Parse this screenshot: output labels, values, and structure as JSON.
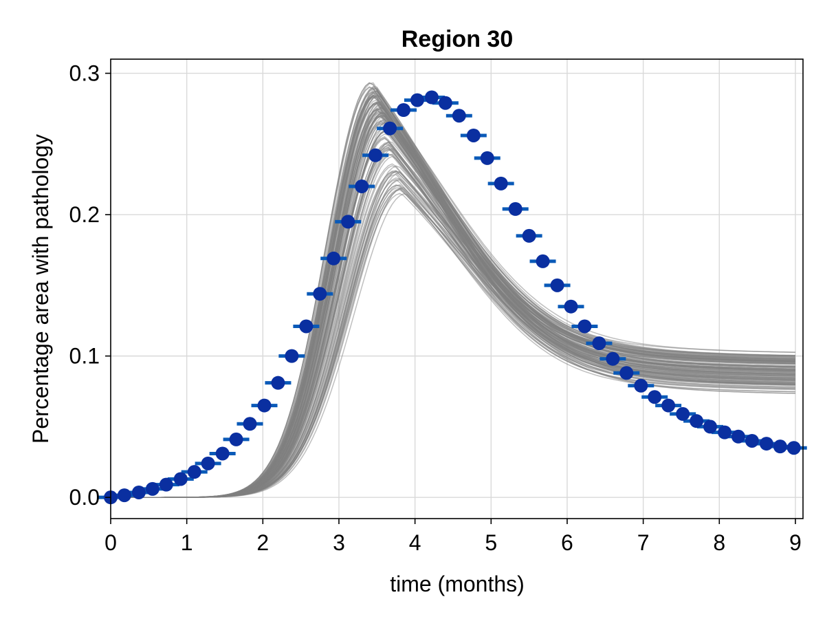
{
  "chart_data": {
    "type": "line",
    "title": "Region 30",
    "xlabel": "time (months)",
    "ylabel": "Percentage area with pathology",
    "xlim": [
      0,
      9.1
    ],
    "ylim": [
      -0.015,
      0.31
    ],
    "x_ticks": [
      0,
      1,
      2,
      3,
      4,
      5,
      6,
      7,
      8,
      9
    ],
    "x_tick_labels": [
      "0",
      "1",
      "2",
      "3",
      "4",
      "5",
      "6",
      "7",
      "8",
      "9"
    ],
    "y_ticks": [
      0.0,
      0.1,
      0.2,
      0.3
    ],
    "y_tick_labels": [
      "0.0",
      "0.1",
      "0.2",
      "0.3"
    ],
    "grid": true,
    "colors": {
      "simulation": "#808080",
      "data_marker": "#0a2fa0",
      "error_bar": "#0a5ab8"
    },
    "simulations": {
      "count": 120,
      "style": "thin grey lines, semi-transparent",
      "peak_value_range": [
        0.215,
        0.294
      ],
      "peak_time_range": [
        3.45,
        3.85
      ],
      "final_value_range": [
        0.071,
        0.103
      ]
    },
    "observed": {
      "marker": "filled circle",
      "x": [
        0.0,
        0.18,
        0.37,
        0.55,
        0.73,
        0.92,
        1.1,
        1.28,
        1.47,
        1.65,
        1.83,
        2.02,
        2.2,
        2.38,
        2.57,
        2.75,
        2.93,
        3.12,
        3.3,
        3.48,
        3.67,
        3.85,
        4.03,
        4.22,
        4.4,
        4.58,
        4.77,
        4.95,
        5.13,
        5.32,
        5.5,
        5.68,
        5.87,
        6.05,
        6.23,
        6.42,
        6.6,
        6.78,
        6.97,
        7.15,
        7.33,
        7.52,
        7.7,
        7.88,
        8.07,
        8.25,
        8.43,
        8.62,
        8.8,
        8.98
      ],
      "y": [
        0.0,
        0.0015,
        0.0035,
        0.006,
        0.009,
        0.013,
        0.018,
        0.024,
        0.031,
        0.041,
        0.052,
        0.065,
        0.081,
        0.1,
        0.121,
        0.144,
        0.169,
        0.195,
        0.22,
        0.242,
        0.261,
        0.274,
        0.281,
        0.283,
        0.279,
        0.27,
        0.256,
        0.24,
        0.222,
        0.204,
        0.185,
        0.167,
        0.15,
        0.135,
        0.121,
        0.109,
        0.098,
        0.088,
        0.079,
        0.071,
        0.065,
        0.059,
        0.054,
        0.05,
        0.046,
        0.043,
        0.04,
        0.038,
        0.036,
        0.035
      ]
    }
  }
}
